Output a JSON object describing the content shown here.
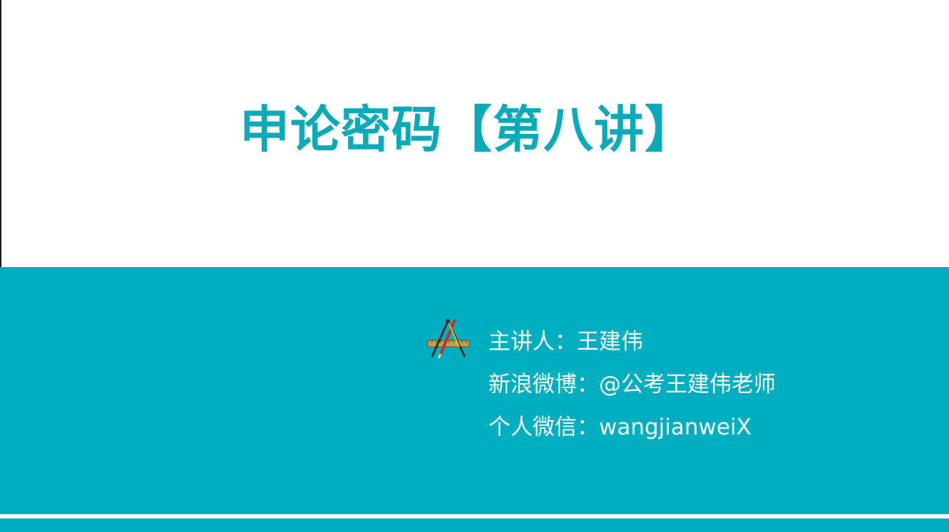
{
  "slide": {
    "title": "申论密码【第八讲】",
    "info": {
      "lecturer": "主讲人：王建伟",
      "weibo": "新浪微博：@公考王建伟老师",
      "wechat": "个人微信：wangjianweiX"
    },
    "icon": "drafting-tools-icon"
  },
  "colors": {
    "accent": "#00AFBF",
    "title": "#0BAAB8",
    "text_on_accent": "#FFFFFF",
    "background": "#FFFFFF"
  }
}
